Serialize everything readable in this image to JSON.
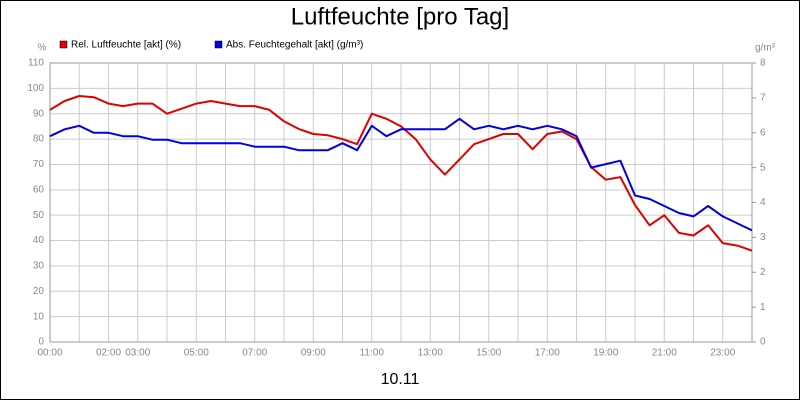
{
  "chart_data": {
    "type": "line",
    "title": "Luftfeuchte [pro Tag]",
    "xlabel": "10.11",
    "ylabel": "%",
    "y2label": "g/m³",
    "x": [
      0,
      0.5,
      1,
      1.5,
      2,
      2.5,
      3,
      3.5,
      4,
      4.5,
      5,
      5.5,
      6,
      6.5,
      7,
      7.5,
      8,
      8.5,
      9,
      9.5,
      10,
      10.5,
      11,
      11.5,
      12,
      12.5,
      13,
      13.5,
      14,
      14.5,
      15,
      15.5,
      16,
      16.5,
      17,
      17.5,
      18,
      18.5,
      19,
      19.5,
      20,
      20.5,
      21,
      21.5,
      22,
      22.5,
      23,
      23.5,
      24
    ],
    "series": [
      {
        "name": "Rel. Luftfeuchte [akt] (%)",
        "color": "#e00000",
        "axis": "y",
        "values": [
          91.5,
          95,
          97,
          96.5,
          94,
          93,
          94,
          94,
          90,
          92,
          94,
          95,
          94,
          93,
          93,
          91.5,
          87,
          84,
          82,
          81.5,
          80,
          78,
          90,
          88,
          85,
          80,
          72,
          66,
          72,
          78,
          80,
          82,
          82,
          76,
          82,
          83,
          80,
          69,
          64,
          65,
          54,
          46,
          50,
          43,
          42,
          46,
          39,
          38,
          36
        ]
      },
      {
        "name": "Abs. Feuchtegehalt [akt] (g/m³)",
        "color": "#0000e0",
        "axis": "y2",
        "values": [
          5.9,
          6.1,
          6.2,
          6.0,
          6.0,
          5.9,
          5.9,
          5.8,
          5.8,
          5.7,
          5.7,
          5.7,
          5.7,
          5.7,
          5.6,
          5.6,
          5.6,
          5.5,
          5.5,
          5.5,
          5.7,
          5.5,
          6.2,
          5.9,
          6.1,
          6.1,
          6.1,
          6.1,
          6.4,
          6.1,
          6.2,
          6.1,
          6.2,
          6.1,
          6.2,
          6.1,
          5.9,
          5.0,
          5.1,
          5.2,
          4.2,
          4.1,
          3.9,
          3.7,
          3.6,
          3.9,
          3.6,
          3.4,
          3.2
        ]
      }
    ],
    "xlim": [
      0,
      24
    ],
    "xticks": [
      {
        "value": 0,
        "label": "00:00"
      },
      {
        "value": 2,
        "label": "02:00"
      },
      {
        "value": 3,
        "label": "03:00"
      },
      {
        "value": 5,
        "label": "05:00"
      },
      {
        "value": 7,
        "label": "07:00"
      },
      {
        "value": 9,
        "label": "09:00"
      },
      {
        "value": 11,
        "label": "11:00"
      },
      {
        "value": 13,
        "label": "13:00"
      },
      {
        "value": 15,
        "label": "15:00"
      },
      {
        "value": 17,
        "label": "17:00"
      },
      {
        "value": 19,
        "label": "19:00"
      },
      {
        "value": 21,
        "label": "21:00"
      },
      {
        "value": 23,
        "label": "23:00"
      }
    ],
    "xgrid": [
      1,
      4,
      6,
      8,
      10,
      12,
      14,
      16,
      18,
      20,
      22,
      24
    ],
    "ylim": [
      0,
      110
    ],
    "yticks": [
      0,
      10,
      20,
      30,
      40,
      50,
      60,
      70,
      80,
      90,
      100,
      110
    ],
    "y2lim": [
      0,
      8
    ],
    "y2ticks": [
      0,
      1,
      2,
      3,
      4,
      5,
      6,
      7,
      8
    ],
    "grid": true
  }
}
